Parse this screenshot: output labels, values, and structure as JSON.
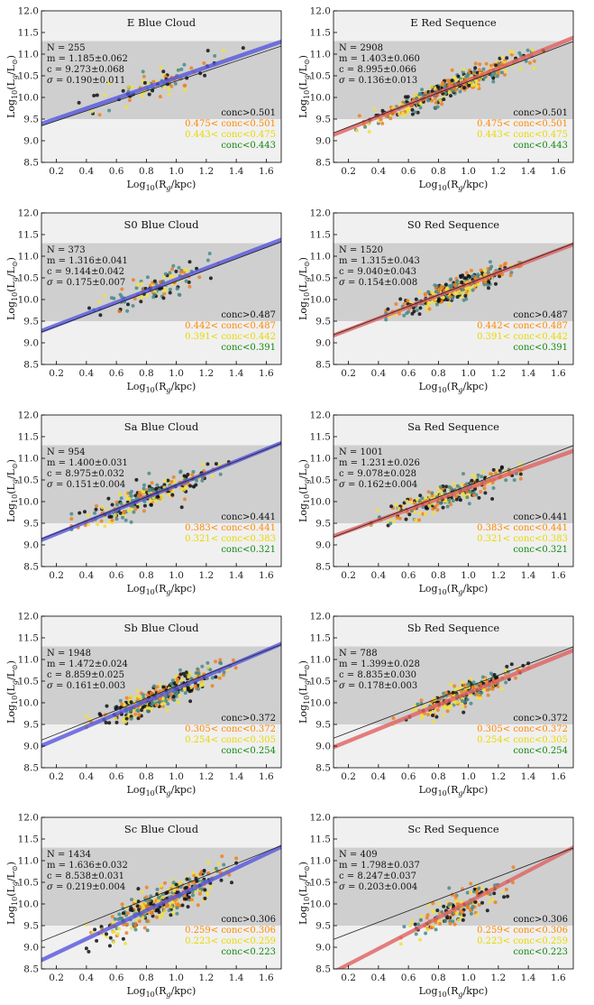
{
  "figure": {
    "xlabel_main": "Log",
    "xlabel_sub": "10",
    "xlabel_rest": "(R",
    "xlabel_rsub": "g",
    "xlabel_end": "/kpc)",
    "ylabel_main": "Log",
    "ylabel_sub": "10",
    "ylabel_rest": "(L",
    "ylabel_lsub": "g",
    "ylabel_mid": "/L",
    "ylabel_sun": "⊙",
    "ylabel_end": ")",
    "xlim": [
      0.1,
      1.7
    ],
    "ylim": [
      8.5,
      12.0
    ],
    "xticks": [
      "0.2",
      "0.4",
      "0.6",
      "0.8",
      "1.0",
      "1.2",
      "1.4",
      "1.6"
    ],
    "yticks": [
      "8.5",
      "9.0",
      "9.5",
      "10.0",
      "10.5",
      "11.0",
      "11.5",
      "12.0"
    ],
    "colors": {
      "band_light": "#f0f0f0",
      "band_dark": "#cfcfcf",
      "blue": "#5555dd",
      "red": "#e06060",
      "black_pts": "#111111",
      "teal_pts": "#4a8a8a",
      "orange_pts": "#f08020",
      "yellow_pts": "#f0e040",
      "legend_black": "#111111",
      "legend_orange": "#ff8800",
      "legend_yellow": "#e8d800",
      "legend_green": "#108810"
    }
  },
  "chart_data": [
    {
      "type": "scatter",
      "title": "E Blue Cloud",
      "cloud": "blue",
      "N": "N = 255",
      "m": "m = 1.185±0.062",
      "c": "c = 9.273±0.068",
      "sigma": "= 0.190±0.011",
      "legend": [
        "conc>0.501",
        "0.475< conc<0.501",
        "0.443< conc<0.475",
        "conc<0.443"
      ],
      "slope": 1.185,
      "intercept": 9.273,
      "ref_slope": 1.15,
      "ref_intercept": 9.23,
      "n_points": 90,
      "xrange": [
        0.35,
        1.45
      ],
      "scatter": 0.22,
      "seed": 11
    },
    {
      "type": "scatter",
      "title": "E Red Sequence",
      "cloud": "red",
      "N": "N = 2908",
      "m": "m = 1.403±0.060",
      "c": "c = 8.995±0.066",
      "sigma": "= 0.136±0.013",
      "legend": [
        "conc>0.501",
        "0.475< conc<0.501",
        "0.443< conc<0.475",
        "conc<0.443"
      ],
      "slope": 1.403,
      "intercept": 8.995,
      "ref_slope": 1.32,
      "ref_intercept": 9.05,
      "n_points": 420,
      "xrange": [
        0.25,
        1.5
      ],
      "scatter": 0.16,
      "seed": 12
    },
    {
      "type": "scatter",
      "title": "S0 Blue Cloud",
      "cloud": "blue",
      "N": "N = 373",
      "m": "m = 1.316±0.041",
      "c": "c = 9.144±0.042",
      "sigma": "= 0.175±0.007",
      "legend": [
        "conc>0.487",
        "0.442< conc<0.487",
        "0.391< conc<0.442",
        "conc<0.391"
      ],
      "slope": 1.316,
      "intercept": 9.144,
      "ref_slope": 1.3,
      "ref_intercept": 9.12,
      "n_points": 120,
      "xrange": [
        0.4,
        1.35
      ],
      "scatter": 0.2,
      "seed": 21
    },
    {
      "type": "scatter",
      "title": "S0 Red Sequence",
      "cloud": "red",
      "N": "N = 1520",
      "m": "m = 1.315±0.043",
      "c": "c = 9.040±0.043",
      "sigma": "= 0.154±0.008",
      "legend": [
        "conc>0.487",
        "0.442< conc<0.487",
        "0.391< conc<0.442",
        "conc<0.391"
      ],
      "slope": 1.315,
      "intercept": 9.04,
      "ref_slope": 1.32,
      "ref_intercept": 9.05,
      "n_points": 320,
      "xrange": [
        0.45,
        1.35
      ],
      "scatter": 0.17,
      "seed": 22
    },
    {
      "type": "scatter",
      "title": "Sa Blue Cloud",
      "cloud": "blue",
      "N": "N = 954",
      "m": "m = 1.400±0.031",
      "c": "c = 8.975±0.032",
      "sigma": "= 0.151±0.004",
      "legend": [
        "conc>0.441",
        "0.383< conc<0.441",
        "0.321< conc<0.383",
        "conc<0.321"
      ],
      "slope": 1.4,
      "intercept": 8.975,
      "ref_slope": 1.38,
      "ref_intercept": 9.0,
      "n_points": 260,
      "xrange": [
        0.3,
        1.35
      ],
      "scatter": 0.17,
      "seed": 31
    },
    {
      "type": "scatter",
      "title": "Sa Red Sequence",
      "cloud": "red",
      "N": "N = 1001",
      "m": "m = 1.231±0.026",
      "c": "c = 9.078±0.028",
      "sigma": "= 0.162±0.004",
      "legend": [
        "conc>0.441",
        "0.383< conc<0.441",
        "0.321< conc<0.383",
        "conc<0.321"
      ],
      "slope": 1.231,
      "intercept": 9.078,
      "ref_slope": 1.32,
      "ref_intercept": 9.05,
      "n_points": 270,
      "xrange": [
        0.35,
        1.35
      ],
      "scatter": 0.17,
      "seed": 32
    },
    {
      "type": "scatter",
      "title": "Sb Blue Cloud",
      "cloud": "blue",
      "N": "N = 1948",
      "m": "m = 1.472±0.024",
      "c": "c = 8.859±0.025",
      "sigma": "= 0.161±0.003",
      "legend": [
        "conc>0.372",
        "0.305< conc<0.372",
        "0.254< conc<0.305",
        "conc<0.254"
      ],
      "slope": 1.472,
      "intercept": 8.859,
      "ref_slope": 1.38,
      "ref_intercept": 9.0,
      "n_points": 380,
      "xrange": [
        0.4,
        1.4
      ],
      "scatter": 0.19,
      "seed": 41
    },
    {
      "type": "scatter",
      "title": "Sb Red Sequence",
      "cloud": "red",
      "N": "N = 788",
      "m": "m = 1.399±0.028",
      "c": "c = 8.835±0.030",
      "sigma": "= 0.178±0.003",
      "legend": [
        "conc>0.372",
        "0.305< conc<0.372",
        "0.254< conc<0.305",
        "conc<0.254"
      ],
      "slope": 1.399,
      "intercept": 8.835,
      "ref_slope": 1.32,
      "ref_intercept": 9.05,
      "n_points": 230,
      "xrange": [
        0.5,
        1.4
      ],
      "scatter": 0.18,
      "seed": 42
    },
    {
      "type": "scatter",
      "title": "Sc Blue Cloud",
      "cloud": "blue",
      "N": "N = 1434",
      "m": "m = 1.636±0.032",
      "c": "c = 8.538±0.031",
      "sigma": "= 0.219±0.004",
      "legend": [
        "conc>0.306",
        "0.259< conc<0.306",
        "0.223< conc<0.259",
        "conc<0.223"
      ],
      "slope": 1.636,
      "intercept": 8.538,
      "ref_slope": 1.38,
      "ref_intercept": 9.0,
      "n_points": 380,
      "xrange": [
        0.4,
        1.4
      ],
      "scatter": 0.23,
      "seed": 51
    },
    {
      "type": "scatter",
      "title": "Sc Red Sequence",
      "cloud": "red",
      "N": "N = 409",
      "m": "m = 1.798±0.037",
      "c": "c = 8.247±0.037",
      "sigma": "= 0.203±0.004",
      "legend": [
        "conc>0.306",
        "0.259< conc<0.306",
        "0.223< conc<0.259",
        "conc<0.223"
      ],
      "slope": 1.798,
      "intercept": 8.247,
      "ref_slope": 1.32,
      "ref_intercept": 9.05,
      "n_points": 170,
      "xrange": [
        0.55,
        1.3
      ],
      "scatter": 0.21,
      "seed": 52
    }
  ]
}
